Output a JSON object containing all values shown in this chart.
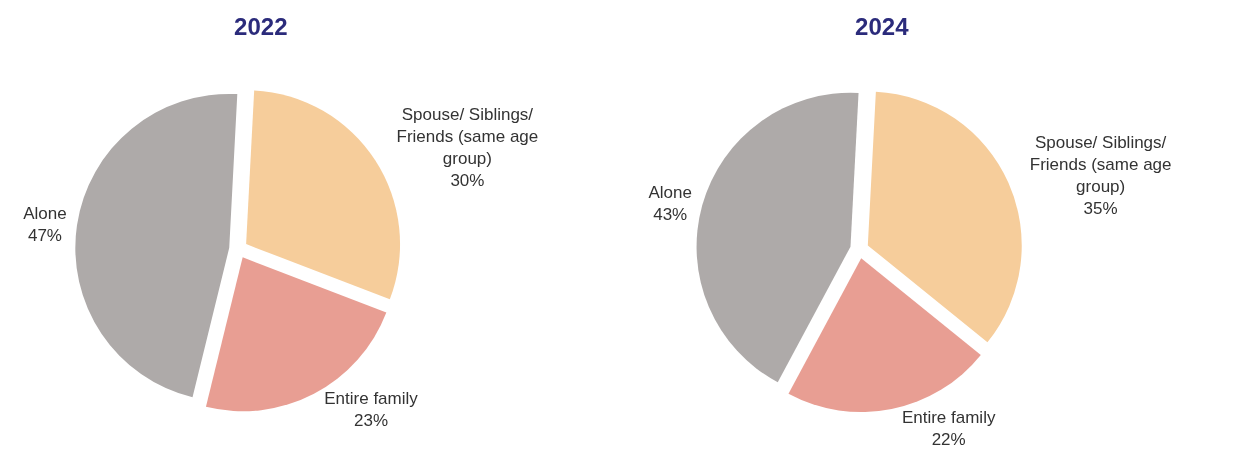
{
  "chart_data": [
    {
      "type": "pie",
      "title": "2022",
      "categories": [
        "Spouse/ Siblings/ Friends (same age group)",
        "Entire family",
        "Alone"
      ],
      "values": [
        30,
        23,
        47
      ],
      "value_labels": [
        "30%",
        "23%",
        "47%"
      ],
      "colors": [
        "#f6cd9b",
        "#e89e93",
        "#aeaaa9"
      ],
      "legend": false
    },
    {
      "type": "pie",
      "title": "2024",
      "categories": [
        "Spouse/ Siblings/ Friends (same age group)",
        "Entire family",
        "Alone"
      ],
      "values": [
        35,
        22,
        43
      ],
      "value_labels": [
        "35%",
        "22%",
        "43%"
      ],
      "colors": [
        "#f6cd9b",
        "#e89e93",
        "#aeaaa9"
      ],
      "legend": false
    }
  ]
}
